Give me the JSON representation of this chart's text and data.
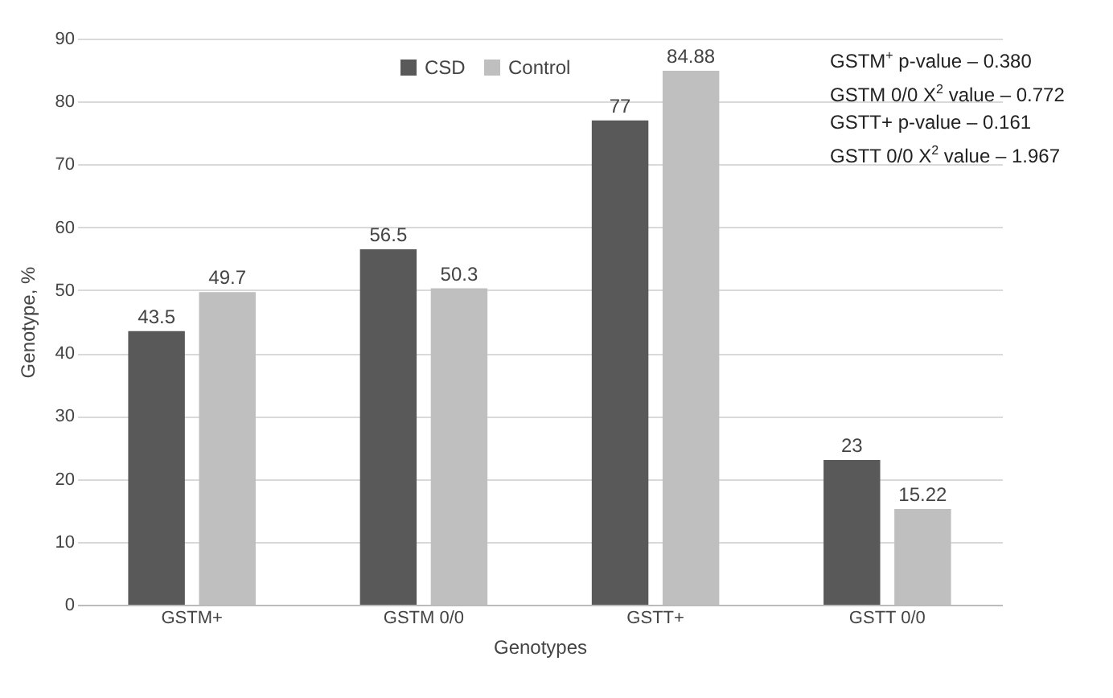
{
  "chart_data": {
    "type": "bar",
    "xlabel": "Genotypes",
    "ylabel": "Genotype, %",
    "categories": [
      "GSTM+",
      "GSTM 0/0",
      "GSTT+",
      "GSTT 0/0"
    ],
    "series": [
      {
        "name": "CSD",
        "color": "#595959",
        "values": [
          43.5,
          56.5,
          77,
          23
        ]
      },
      {
        "name": "Control",
        "color": "#bfbfbf",
        "values": [
          49.7,
          50.3,
          84.88,
          15.22
        ]
      }
    ],
    "ylim": [
      0,
      90
    ],
    "yticks": [
      0,
      10,
      20,
      30,
      40,
      50,
      60,
      70,
      80,
      90
    ],
    "grid": "y",
    "legend": "top",
    "data_labels": true,
    "annotations": [
      "GSTM$^{+}$ p-value – 0.380",
      "GSTM 0/0 X$^{2}$ value – 0.772",
      "GSTT+ p-value – 0.161",
      "GSTT 0/0 X$^{2}$ value – 1.967"
    ]
  }
}
